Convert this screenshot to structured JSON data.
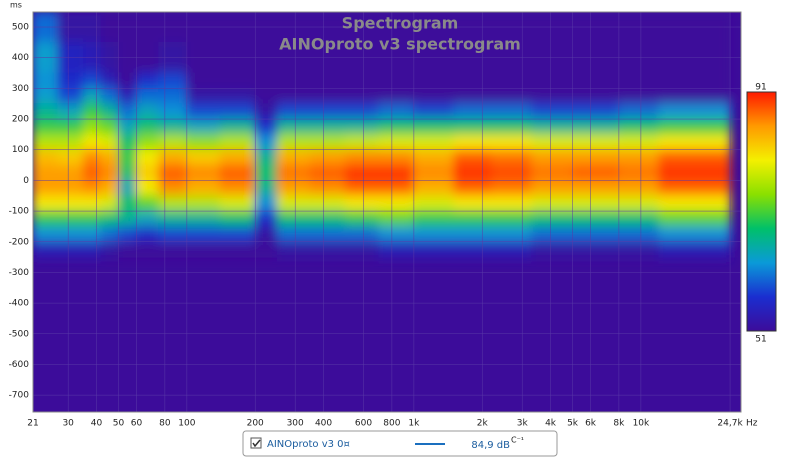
{
  "chart_data": {
    "type": "heatmap",
    "title": "Spectrogram",
    "subtitle": "AINOproto v3 spectrogram",
    "ylabel": "ms",
    "xlabel": "Hz",
    "x_log": true,
    "xlim": [
      21,
      27600
    ],
    "ylim": [
      -755,
      549
    ],
    "zlim": [
      51,
      91
    ],
    "xticks": [
      21,
      30,
      40,
      50,
      60,
      80,
      100,
      200,
      300,
      400,
      600,
      800,
      {
        "value": 1000,
        "label": "1k"
      },
      {
        "value": 2000,
        "label": "2k"
      },
      {
        "value": 3000,
        "label": "3k"
      },
      {
        "value": 4000,
        "label": "4k"
      },
      {
        "value": 5000,
        "label": "5k"
      },
      {
        "value": 6000,
        "label": "6k"
      },
      {
        "value": 8000,
        "label": "8k"
      },
      {
        "value": 10000,
        "label": "10k"
      },
      {
        "value": 24700,
        "label": "24,7k"
      }
    ],
    "yticks": [
      500,
      400,
      300,
      200,
      100,
      0,
      -100,
      -200,
      -300,
      -400,
      -500,
      -600,
      -700
    ],
    "grid": true,
    "colormap": [
      "#3c0c9a",
      "#1a2ed0",
      "#0a9ad8",
      "#00c06a",
      "#8ae000",
      "#f4f000",
      "#ff9a00",
      "#ff1a00"
    ],
    "x_edges": [
      21,
      27,
      35,
      42,
      50,
      60,
      75,
      100,
      140,
      200,
      250,
      350,
      500,
      700,
      1000,
      1500,
      2200,
      3300,
      5000,
      8000,
      12000,
      24700
    ],
    "y_edges": [
      550,
      450,
      350,
      300,
      250,
      200,
      150,
      100,
      50,
      0,
      -50,
      -100,
      -150,
      -200,
      -250
    ],
    "values": [
      [
        60,
        63,
        62,
        63,
        66,
        70,
        76,
        83,
        85,
        85,
        80,
        70,
        62,
        54
      ],
      [
        52,
        55,
        56,
        58,
        64,
        70,
        76,
        82,
        85,
        85,
        80,
        70,
        62,
        54
      ],
      [
        52,
        54,
        58,
        64,
        70,
        74,
        80,
        86,
        88,
        86,
        80,
        70,
        62,
        54
      ],
      [
        50,
        52,
        54,
        60,
        66,
        72,
        78,
        84,
        86,
        84,
        78,
        68,
        60,
        52
      ],
      [
        50,
        50,
        50,
        54,
        60,
        64,
        68,
        70,
        68,
        64,
        68,
        66,
        58,
        50
      ],
      [
        50,
        50,
        56,
        60,
        64,
        68,
        74,
        80,
        82,
        80,
        72,
        64,
        56,
        50
      ],
      [
        50,
        52,
        58,
        60,
        62,
        66,
        76,
        84,
        88,
        86,
        76,
        66,
        58,
        50
      ],
      [
        50,
        50,
        50,
        52,
        58,
        64,
        74,
        82,
        86,
        84,
        76,
        66,
        58,
        50
      ],
      [
        50,
        50,
        50,
        52,
        58,
        66,
        76,
        84,
        88,
        86,
        78,
        68,
        58,
        51
      ],
      [
        50,
        50,
        50,
        50,
        52,
        56,
        62,
        66,
        68,
        66,
        62,
        56,
        52,
        50
      ],
      [
        50,
        50,
        50,
        50,
        58,
        66,
        76,
        84,
        87,
        85,
        78,
        68,
        60,
        52
      ],
      [
        50,
        50,
        50,
        50,
        58,
        66,
        76,
        85,
        88,
        86,
        78,
        68,
        60,
        52
      ],
      [
        50,
        50,
        50,
        50,
        58,
        66,
        77,
        86,
        90,
        88,
        80,
        70,
        60,
        52
      ],
      [
        50,
        50,
        50,
        50,
        60,
        68,
        78,
        86,
        90,
        88,
        80,
        72,
        62,
        54
      ],
      [
        50,
        50,
        50,
        50,
        58,
        68,
        78,
        84,
        86,
        84,
        78,
        70,
        62,
        54
      ],
      [
        50,
        50,
        50,
        50,
        60,
        68,
        80,
        88,
        90,
        88,
        80,
        70,
        62,
        54
      ],
      [
        50,
        50,
        50,
        50,
        60,
        68,
        80,
        87,
        89,
        87,
        80,
        70,
        62,
        54
      ],
      [
        50,
        50,
        50,
        50,
        58,
        66,
        78,
        85,
        87,
        85,
        78,
        68,
        60,
        52
      ],
      [
        50,
        50,
        50,
        50,
        58,
        66,
        78,
        85,
        88,
        85,
        78,
        68,
        60,
        52
      ],
      [
        50,
        50,
        50,
        50,
        60,
        68,
        78,
        85,
        87,
        85,
        78,
        68,
        60,
        52
      ],
      [
        50,
        50,
        50,
        50,
        62,
        70,
        80,
        88,
        90,
        88,
        80,
        72,
        62,
        54
      ]
    ],
    "legend": {
      "name": "AINOproto v3 0¤",
      "level": "84,9 dB",
      "level_suffix": "C⁻¹",
      "color": "#1a6fbf"
    }
  }
}
